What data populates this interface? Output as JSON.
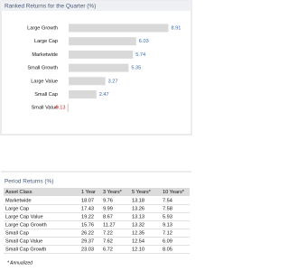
{
  "chart_data": {
    "type": "bar",
    "orientation": "horizontal",
    "title": "Ranked Returns for the Quarter (%)",
    "categories": [
      "Large Growth",
      "Large Cap",
      "Marketwide",
      "Small Growth",
      "Large Value",
      "Small Cap",
      "Small Value"
    ],
    "values": [
      8.91,
      6.03,
      5.74,
      5.35,
      3.27,
      2.47,
      -0.13
    ],
    "color": "#d9d9d9",
    "xlim": [
      -0.25,
      10
    ]
  },
  "table": {
    "title": "Period Returns (%)",
    "header": [
      "Asset Class",
      "1 Year",
      "3 Years*",
      "5 Years*",
      "10 Years*"
    ],
    "rows": [
      [
        "Marketwide",
        "18.07",
        "9.76",
        "13.18",
        "7.54"
      ],
      [
        "Large Cap",
        "17.43",
        "9.99",
        "13.26",
        "7.58"
      ],
      [
        "Large Cap Value",
        "19.22",
        "8.67",
        "13.13",
        "5.93"
      ],
      [
        "Large Cap Growth",
        "15.76",
        "11.27",
        "13.32",
        "9.13"
      ],
      [
        "Small Cap",
        "26.22",
        "7.22",
        "12.35",
        "7.12"
      ],
      [
        "Small Cap Value",
        "29.37",
        "7.62",
        "12.54",
        "6.09"
      ],
      [
        "Small Cap Growth",
        "23.03",
        "6.72",
        "12.10",
        "8.05"
      ]
    ],
    "footnote": "* Annualized"
  }
}
